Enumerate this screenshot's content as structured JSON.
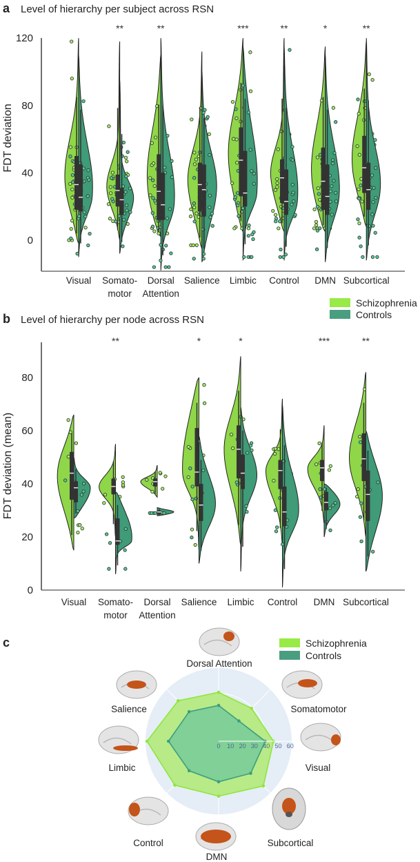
{
  "colors": {
    "schizophrenia": "#8fd649",
    "controls": "#3f9b78",
    "schizophrenia_legend": "#98ea46",
    "controls_legend": "#4a9e80",
    "box": "#333333",
    "radar_bg": "#e5edf7",
    "brain_region": "#c4541a"
  },
  "panels": [
    {
      "letter": "a",
      "title": "Level of hierarchy per subject across RSN"
    },
    {
      "letter": "b",
      "title": "Level of hierarchy per node across RSN"
    },
    {
      "letter": "c"
    }
  ],
  "legend": {
    "schizophrenia": "Schizophrenia",
    "controls": "Controls"
  },
  "chart_data": [
    {
      "type": "violin",
      "title": "Level of hierarchy per subject across RSN",
      "ylabel": "FDT deviation",
      "yticks": [
        0,
        40,
        80,
        120
      ],
      "categories": [
        [
          "Visual"
        ],
        [
          "Somato-",
          "motor"
        ],
        [
          "Dorsal",
          "Attention"
        ],
        [
          "Salience"
        ],
        [
          "Limbic"
        ],
        [
          "Control"
        ],
        [
          "DMN"
        ],
        [
          "Subcortical"
        ]
      ],
      "significance": [
        "",
        "**",
        "**",
        "",
        "***",
        "**",
        "*",
        "**"
      ],
      "legend": "right",
      "series": [
        {
          "name": "Schizophrenia",
          "stats": [
            {
              "min": -2,
              "q1": 18,
              "median": 33,
              "q3": 50,
              "max": 120
            },
            {
              "min": 0,
              "q1": 20,
              "median": 29.5,
              "q3": 39,
              "max": 118
            },
            {
              "min": 2,
              "q1": 12,
              "median": 29,
              "q3": 51,
              "max": 110
            },
            {
              "min": -5,
              "q1": 17,
              "median": 33,
              "q3": 46,
              "max": 112
            },
            {
              "min": 5,
              "q1": 26,
              "median": 47.5,
              "q3": 67,
              "max": 120
            },
            {
              "min": 5,
              "q1": 22,
              "median": 37,
              "q3": 48,
              "max": 120
            },
            {
              "min": 5,
              "q1": 18,
              "median": 35,
              "q3": 55,
              "max": 115
            },
            {
              "min": 8,
              "q1": 28,
              "median": 43,
              "q3": 62,
              "max": 118
            }
          ]
        },
        {
          "name": "Controls",
          "stats": [
            {
              "min": -10,
              "q1": 17,
              "median": 25.5,
              "q3": 45,
              "max": 110
            },
            {
              "min": -8,
              "q1": 15,
              "median": 24,
              "q3": 31,
              "max": 95
            },
            {
              "min": -18,
              "q1": 12,
              "median": 21,
              "q3": 40,
              "max": 120
            },
            {
              "min": -13,
              "q1": 14,
              "median": 30,
              "q3": 45,
              "max": 100
            },
            {
              "min": -12,
              "q1": 20,
              "median": 28,
              "q3": 53,
              "max": 115
            },
            {
              "min": -12,
              "q1": 15,
              "median": 23,
              "q3": 42,
              "max": 115
            },
            {
              "min": -13,
              "q1": 15,
              "median": 26,
              "q3": 45,
              "max": 110
            },
            {
              "min": -12,
              "q1": 18,
              "median": 30,
              "q3": 46,
              "max": 120
            }
          ]
        }
      ]
    },
    {
      "type": "violin",
      "title": "Level of hierarchy per node across RSN",
      "ylabel": "FDT deviation (mean)",
      "yticks": [
        0,
        20,
        40,
        60,
        80
      ],
      "categories": [
        [
          "Visual"
        ],
        [
          "Somato-",
          "motor"
        ],
        [
          "Dorsal",
          "Attention"
        ],
        [
          "Salience"
        ],
        [
          "Limbic"
        ],
        [
          "Control"
        ],
        [
          "DMN"
        ],
        [
          "Subcortical"
        ]
      ],
      "significance": [
        "",
        "**",
        "",
        "*",
        "*",
        "",
        "***",
        "**"
      ],
      "series": [
        {
          "name": "Schizophrenia",
          "stats": [
            {
              "min": 15,
              "q1": 34,
              "median": 44,
              "q3": 52,
              "max": 66
            },
            {
              "min": 20,
              "q1": 36,
              "median": 39,
              "q3": 42,
              "max": 55
            },
            {
              "min": 35,
              "q1": 39,
              "median": 40.8,
              "q3": 42,
              "max": 47
            },
            {
              "min": 15,
              "q1": 39,
              "median": 44.4,
              "q3": 61,
              "max": 80
            },
            {
              "min": 17,
              "q1": 42,
              "median": 53,
              "q3": 62,
              "max": 88
            },
            {
              "min": 17,
              "q1": 38,
              "median": 45,
              "q3": 49,
              "max": 72
            },
            {
              "min": 25,
              "q1": 41,
              "median": 46,
              "q3": 49,
              "max": 62
            },
            {
              "min": 20,
              "q1": 41,
              "median": 49.4,
              "q3": 59,
              "max": 82
            }
          ]
        },
        {
          "name": "Controls",
          "stats": [
            {
              "min": 27,
              "q1": 33,
              "median": 38.5,
              "q3": 41,
              "max": 50
            },
            {
              "min": 6,
              "q1": 17,
              "median": 18.5,
              "q3": 27,
              "max": 37
            },
            {
              "min": 28,
              "q1": 28.6,
              "median": 29.4,
              "q3": 30,
              "max": 31
            },
            {
              "min": 10,
              "q1": 26,
              "median": 32,
              "q3": 40,
              "max": 58
            },
            {
              "min": 7,
              "q1": 38,
              "median": 44,
              "q3": 51,
              "max": 69
            },
            {
              "min": 1,
              "q1": 24,
              "median": 29.4,
              "q3": 39,
              "max": 70
            },
            {
              "min": 20,
              "q1": 30,
              "median": 33,
              "q3": 37,
              "max": 40
            },
            {
              "min": 7,
              "q1": 26,
              "median": 36,
              "q3": 45,
              "max": 60
            }
          ]
        }
      ]
    },
    {
      "type": "radar",
      "categories": [
        "Dorsal Attention",
        "Somatomotor",
        "Visual",
        "Subcortical",
        "DMN",
        "Control",
        "Limbic",
        "Salience"
      ],
      "rticks": [
        0,
        10,
        20,
        30,
        40,
        50,
        60
      ],
      "rlim": [
        0,
        61
      ],
      "legend": "top-right",
      "series": [
        {
          "name": "Schizophrenia",
          "values": [
            41,
            39,
            46,
            53,
            46,
            52,
            60,
            48
          ]
        },
        {
          "name": "Controls",
          "values": [
            30,
            24,
            39,
            38,
            34,
            35,
            42,
            35
          ]
        }
      ]
    }
  ]
}
